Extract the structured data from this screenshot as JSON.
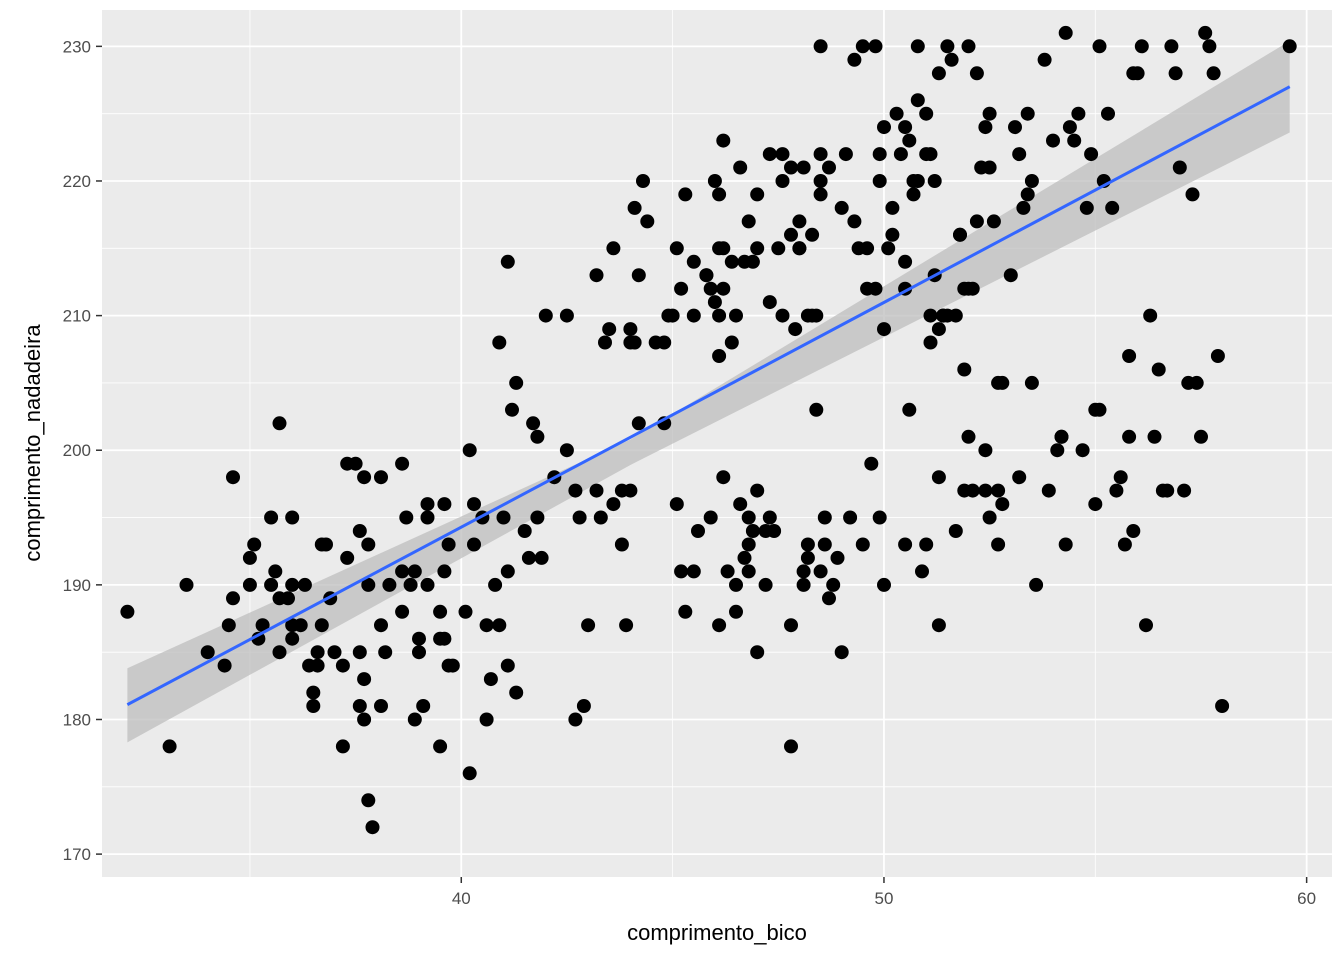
{
  "chart_data": {
    "type": "scatter",
    "title": "",
    "xlabel": "comprimento_bico",
    "ylabel": "comprimento_nadadeira",
    "xlim": [
      31.5,
      60.6
    ],
    "ylim": [
      168.3,
      232.7
    ],
    "x_ticks": [
      40,
      50,
      60
    ],
    "x_tick_labels": [
      "40",
      "50",
      "60"
    ],
    "y_ticks": [
      170,
      180,
      190,
      200,
      210,
      220,
      230
    ],
    "y_tick_labels": [
      "170",
      "180",
      "190",
      "200",
      "210",
      "220",
      "230"
    ],
    "grid": true,
    "legend": "none",
    "colors": {
      "panel": "#EBEBEB",
      "grid": "#FFFFFF",
      "points": "#000000",
      "smooth_line": "#3366FF",
      "confidence_band": "#BDBDBD"
    },
    "smooth": {
      "method": "linear",
      "line": {
        "x": [
          32.1,
          59.6
        ],
        "y": [
          181.1,
          227.0
        ]
      },
      "band": {
        "x": [
          32.1,
          44.0,
          59.6
        ],
        "upper": [
          183.8,
          200.8,
          230.4
        ],
        "lower": [
          178.3,
          198.9,
          223.6
        ]
      }
    },
    "points": [
      [
        32.1,
        188
      ],
      [
        33.1,
        178
      ],
      [
        33.5,
        190
      ],
      [
        34.0,
        185
      ],
      [
        34.4,
        184
      ],
      [
        34.5,
        187
      ],
      [
        34.6,
        189
      ],
      [
        34.6,
        198
      ],
      [
        35.0,
        192
      ],
      [
        35.0,
        190
      ],
      [
        35.1,
        193
      ],
      [
        35.2,
        186
      ],
      [
        35.3,
        187
      ],
      [
        35.5,
        195
      ],
      [
        35.5,
        190
      ],
      [
        35.6,
        191
      ],
      [
        35.7,
        185
      ],
      [
        35.7,
        189
      ],
      [
        35.7,
        202
      ],
      [
        35.9,
        189
      ],
      [
        36.0,
        190
      ],
      [
        36.0,
        187
      ],
      [
        36.0,
        186
      ],
      [
        36.0,
        195
      ],
      [
        36.2,
        187
      ],
      [
        36.3,
        190
      ],
      [
        36.4,
        184
      ],
      [
        36.5,
        182
      ],
      [
        36.5,
        181
      ],
      [
        36.6,
        184
      ],
      [
        36.6,
        185
      ],
      [
        36.7,
        187
      ],
      [
        36.7,
        193
      ],
      [
        36.8,
        193
      ],
      [
        36.9,
        189
      ],
      [
        37.0,
        185
      ],
      [
        37.2,
        184
      ],
      [
        37.2,
        178
      ],
      [
        37.3,
        192
      ],
      [
        37.3,
        199
      ],
      [
        37.5,
        199
      ],
      [
        37.6,
        194
      ],
      [
        37.6,
        185
      ],
      [
        37.6,
        181
      ],
      [
        37.7,
        183
      ],
      [
        37.7,
        180
      ],
      [
        37.7,
        198
      ],
      [
        37.8,
        190
      ],
      [
        37.8,
        174
      ],
      [
        37.8,
        193
      ],
      [
        37.9,
        172
      ],
      [
        38.1,
        181
      ],
      [
        38.1,
        198
      ],
      [
        38.1,
        187
      ],
      [
        38.2,
        185
      ],
      [
        38.3,
        190
      ],
      [
        38.6,
        188
      ],
      [
        38.6,
        199
      ],
      [
        38.6,
        191
      ],
      [
        38.7,
        195
      ],
      [
        38.8,
        190
      ],
      [
        38.9,
        180
      ],
      [
        38.9,
        191
      ],
      [
        39.0,
        186
      ],
      [
        39.0,
        185
      ],
      [
        39.1,
        181
      ],
      [
        39.2,
        190
      ],
      [
        39.2,
        196
      ],
      [
        39.2,
        195
      ],
      [
        39.5,
        188
      ],
      [
        39.5,
        186
      ],
      [
        39.5,
        178
      ],
      [
        39.6,
        196
      ],
      [
        39.6,
        191
      ],
      [
        39.6,
        186
      ],
      [
        39.7,
        193
      ],
      [
        39.7,
        184
      ],
      [
        39.8,
        184
      ],
      [
        40.1,
        188
      ],
      [
        40.2,
        176
      ],
      [
        40.2,
        200
      ],
      [
        40.3,
        193
      ],
      [
        40.3,
        196
      ],
      [
        40.5,
        195
      ],
      [
        40.6,
        187
      ],
      [
        40.6,
        180
      ],
      [
        40.7,
        183
      ],
      [
        40.8,
        190
      ],
      [
        40.9,
        187
      ],
      [
        40.9,
        208
      ],
      [
        41.0,
        195
      ],
      [
        41.1,
        191
      ],
      [
        41.1,
        184
      ],
      [
        41.1,
        214
      ],
      [
        41.2,
        203
      ],
      [
        41.3,
        182
      ],
      [
        41.3,
        205
      ],
      [
        41.5,
        194
      ],
      [
        41.6,
        192
      ],
      [
        41.7,
        202
      ],
      [
        41.8,
        195
      ],
      [
        41.8,
        201
      ],
      [
        41.9,
        192
      ],
      [
        42.0,
        210
      ],
      [
        42.2,
        198
      ],
      [
        42.5,
        210
      ],
      [
        42.5,
        200
      ],
      [
        42.7,
        197
      ],
      [
        42.7,
        180
      ],
      [
        42.8,
        195
      ],
      [
        42.9,
        181
      ],
      [
        43.0,
        187
      ],
      [
        43.2,
        213
      ],
      [
        43.2,
        197
      ],
      [
        43.3,
        195
      ],
      [
        43.4,
        208
      ],
      [
        43.5,
        209
      ],
      [
        43.6,
        196
      ],
      [
        43.6,
        215
      ],
      [
        43.8,
        197
      ],
      [
        43.8,
        193
      ],
      [
        43.9,
        187
      ],
      [
        44.0,
        208
      ],
      [
        44.0,
        209
      ],
      [
        44.0,
        197
      ],
      [
        44.1,
        208
      ],
      [
        44.1,
        218
      ],
      [
        44.2,
        202
      ],
      [
        44.2,
        213
      ],
      [
        44.3,
        220
      ],
      [
        44.4,
        217
      ],
      [
        44.6,
        208
      ],
      [
        44.8,
        208
      ],
      [
        45.0,
        210
      ],
      [
        45.1,
        196
      ],
      [
        45.3,
        219
      ],
      [
        45.5,
        214
      ],
      [
        45.8,
        213
      ],
      [
        45.9,
        212
      ],
      [
        46.0,
        220
      ],
      [
        46.0,
        211
      ],
      [
        46.1,
        215
      ],
      [
        46.1,
        210
      ],
      [
        46.1,
        207
      ],
      [
        46.2,
        215
      ],
      [
        46.2,
        223
      ],
      [
        46.2,
        198
      ],
      [
        46.2,
        212
      ],
      [
        46.3,
        191
      ],
      [
        46.4,
        208
      ],
      [
        46.5,
        210
      ],
      [
        46.5,
        188
      ],
      [
        46.6,
        196
      ],
      [
        46.7,
        214
      ],
      [
        46.8,
        191
      ],
      [
        46.8,
        195
      ],
      [
        46.8,
        193
      ],
      [
        46.9,
        194
      ],
      [
        46.9,
        214
      ],
      [
        47.0,
        197
      ],
      [
        47.0,
        219
      ],
      [
        47.2,
        190
      ],
      [
        47.3,
        195
      ],
      [
        47.3,
        211
      ],
      [
        47.4,
        194
      ],
      [
        47.5,
        215
      ],
      [
        47.6,
        220
      ],
      [
        47.6,
        210
      ],
      [
        47.8,
        187
      ],
      [
        47.8,
        221
      ],
      [
        47.8,
        216
      ],
      [
        47.8,
        178
      ],
      [
        47.9,
        209
      ],
      [
        48.0,
        217
      ],
      [
        48.0,
        215
      ],
      [
        48.1,
        221
      ],
      [
        48.1,
        190
      ],
      [
        48.1,
        191
      ],
      [
        48.2,
        192
      ],
      [
        48.2,
        193
      ],
      [
        48.3,
        210
      ],
      [
        48.3,
        216
      ],
      [
        48.4,
        210
      ],
      [
        48.5,
        219
      ],
      [
        48.5,
        222
      ],
      [
        48.6,
        195
      ],
      [
        48.6,
        193
      ],
      [
        48.7,
        189
      ],
      [
        48.8,
        190
      ],
      [
        48.9,
        192
      ],
      [
        49.0,
        185
      ],
      [
        49.1,
        222
      ],
      [
        49.4,
        215
      ],
      [
        49.6,
        215
      ],
      [
        49.7,
        199
      ],
      [
        49.8,
        212
      ],
      [
        49.9,
        222
      ],
      [
        49.9,
        195
      ],
      [
        50.0,
        209
      ],
      [
        50.1,
        215
      ],
      [
        50.2,
        216
      ],
      [
        50.5,
        212
      ],
      [
        50.5,
        214
      ],
      [
        50.6,
        203
      ],
      [
        50.7,
        220
      ],
      [
        50.7,
        219
      ],
      [
        50.8,
        230
      ],
      [
        50.9,
        191
      ],
      [
        51.0,
        222
      ],
      [
        51.1,
        210
      ],
      [
        51.1,
        222
      ],
      [
        51.1,
        208
      ],
      [
        51.2,
        213
      ],
      [
        51.3,
        209
      ],
      [
        51.3,
        228
      ],
      [
        51.4,
        210
      ],
      [
        51.5,
        210
      ],
      [
        51.6,
        229
      ],
      [
        51.7,
        210
      ],
      [
        51.8,
        216
      ],
      [
        51.8,
        216
      ],
      [
        51.9,
        212
      ],
      [
        52.0,
        212
      ],
      [
        52.1,
        212
      ],
      [
        52.2,
        217
      ],
      [
        52.3,
        221
      ],
      [
        52.4,
        200
      ],
      [
        52.4,
        224
      ],
      [
        52.5,
        225
      ],
      [
        52.5,
        195
      ],
      [
        52.6,
        217
      ],
      [
        52.7,
        193
      ],
      [
        52.8,
        205
      ],
      [
        52.8,
        196
      ],
      [
        53.0,
        213
      ],
      [
        53.1,
        224
      ],
      [
        53.2,
        222
      ],
      [
        53.2,
        198
      ],
      [
        53.3,
        218
      ],
      [
        53.4,
        225
      ],
      [
        53.5,
        220
      ],
      [
        53.6,
        190
      ],
      [
        53.8,
        229
      ],
      [
        53.9,
        197
      ],
      [
        54.0,
        223
      ],
      [
        54.1,
        200
      ],
      [
        54.2,
        201
      ],
      [
        54.3,
        193
      ],
      [
        54.4,
        224
      ],
      [
        54.5,
        223
      ],
      [
        54.6,
        225
      ],
      [
        54.7,
        200
      ],
      [
        54.8,
        218
      ],
      [
        54.9,
        222
      ],
      [
        55.0,
        203
      ],
      [
        55.0,
        196
      ],
      [
        55.1,
        203
      ],
      [
        55.2,
        220
      ],
      [
        55.3,
        225
      ],
      [
        55.4,
        218
      ],
      [
        55.5,
        197
      ],
      [
        55.6,
        198
      ],
      [
        55.7,
        193
      ],
      [
        55.8,
        201
      ],
      [
        55.9,
        194
      ],
      [
        56.0,
        228
      ],
      [
        56.1,
        230
      ],
      [
        56.2,
        187
      ],
      [
        56.3,
        210
      ],
      [
        56.4,
        201
      ],
      [
        56.5,
        206
      ],
      [
        56.6,
        197
      ],
      [
        56.7,
        197
      ],
      [
        56.8,
        230
      ],
      [
        56.9,
        228
      ],
      [
        57.0,
        221
      ],
      [
        57.1,
        197
      ],
      [
        57.2,
        205
      ],
      [
        57.3,
        219
      ],
      [
        57.4,
        205
      ],
      [
        57.5,
        201
      ],
      [
        57.6,
        231
      ],
      [
        57.7,
        230
      ],
      [
        57.8,
        228
      ],
      [
        57.9,
        207
      ],
      [
        58.0,
        181
      ],
      [
        59.6,
        230
      ],
      [
        48.5,
        230
      ],
      [
        49.3,
        229
      ],
      [
        49.5,
        230
      ],
      [
        49.8,
        230
      ],
      [
        50.0,
        224
      ],
      [
        50.3,
        225
      ],
      [
        50.5,
        224
      ],
      [
        50.8,
        226
      ],
      [
        51.0,
        225
      ],
      [
        51.5,
        230
      ],
      [
        52.0,
        230
      ],
      [
        52.2,
        228
      ],
      [
        52.5,
        221
      ],
      [
        53.4,
        219
      ],
      [
        54.3,
        231
      ],
      [
        55.1,
        230
      ],
      [
        55.9,
        228
      ],
      [
        55.8,
        207
      ],
      [
        54.2,
        201
      ],
      [
        53.5,
        205
      ],
      [
        52.7,
        205
      ],
      [
        52.7,
        197
      ],
      [
        52.0,
        201
      ],
      [
        51.9,
        197
      ],
      [
        51.7,
        194
      ],
      [
        51.3,
        198
      ],
      [
        51.3,
        187
      ],
      [
        51.0,
        193
      ],
      [
        50.5,
        193
      ],
      [
        50.0,
        190
      ],
      [
        49.5,
        193
      ],
      [
        49.2,
        195
      ],
      [
        48.5,
        191
      ],
      [
        48.4,
        203
      ],
      [
        48.2,
        210
      ],
      [
        47.2,
        194
      ],
      [
        47.0,
        185
      ],
      [
        46.7,
        192
      ],
      [
        46.5,
        190
      ],
      [
        46.1,
        187
      ],
      [
        45.9,
        195
      ],
      [
        45.6,
        194
      ],
      [
        45.5,
        191
      ],
      [
        45.3,
        188
      ],
      [
        45.2,
        191
      ],
      [
        44.9,
        210
      ],
      [
        44.8,
        202
      ],
      [
        45.1,
        215
      ],
      [
        45.2,
        212
      ],
      [
        45.5,
        210
      ],
      [
        45.8,
        213
      ],
      [
        46.1,
        219
      ],
      [
        46.4,
        214
      ],
      [
        46.6,
        221
      ],
      [
        46.8,
        217
      ],
      [
        47.0,
        215
      ],
      [
        47.3,
        222
      ],
      [
        47.6,
        222
      ],
      [
        48.0,
        215
      ],
      [
        48.5,
        220
      ],
      [
        48.7,
        221
      ],
      [
        49.0,
        218
      ],
      [
        49.3,
        217
      ],
      [
        49.6,
        212
      ],
      [
        49.9,
        220
      ],
      [
        50.2,
        218
      ],
      [
        50.4,
        222
      ],
      [
        50.6,
        223
      ],
      [
        50.8,
        220
      ],
      [
        51.2,
        220
      ],
      [
        51.4,
        210
      ],
      [
        51.9,
        206
      ],
      [
        52.1,
        197
      ],
      [
        52.4,
        197
      ]
    ]
  }
}
